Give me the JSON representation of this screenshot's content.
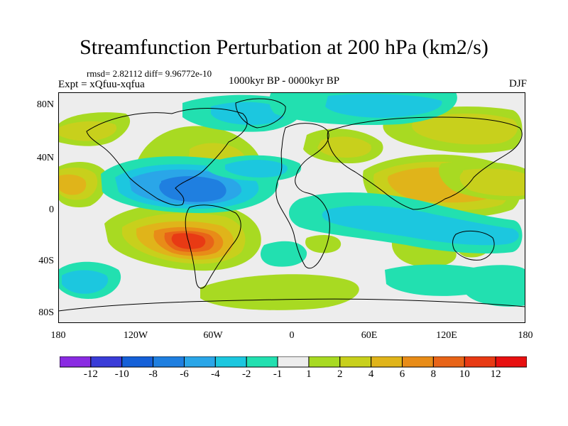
{
  "title": "Streamfunction Perturbation at 200 hPa (km2/s)",
  "stats": "rmsd= 2.82112 diff= 9.96772e-10",
  "experiment": "Expt = xQfuu-xqfua",
  "period": "1000kyr BP - 0000kyr BP",
  "season": "DJF",
  "axes": {
    "y_ticks": [
      "80N",
      "40N",
      "0",
      "40S",
      "80S"
    ],
    "x_ticks": [
      "180",
      "120W",
      "60W",
      "0",
      "60E",
      "120E",
      "180"
    ]
  },
  "colorbar": {
    "labels": [
      "-12",
      "-10",
      "-8",
      "-6",
      "-4",
      "-2",
      "-1",
      "1",
      "2",
      "4",
      "6",
      "8",
      "10",
      "12"
    ],
    "colors": [
      "#8A2BE2",
      "#3A3CD8",
      "#1560D8",
      "#1F7FE0",
      "#2AA6E8",
      "#1CC7DF",
      "#22E0B0",
      "#EDEDED",
      "#A8DA22",
      "#C8D01C",
      "#E0B41A",
      "#E88C18",
      "#E86418",
      "#E83A14",
      "#E81010"
    ]
  },
  "palette": {
    "p1": "#A8DA22",
    "p2": "#C8D01C",
    "p4": "#E0B41A",
    "p6": "#E88C18",
    "p8": "#E86418",
    "p10": "#E83A14",
    "n1": "#22E0B0",
    "n2": "#1CC7DF",
    "n4": "#2AA6E8",
    "n6": "#1F7FE0",
    "neutral": "#EDEDED"
  }
}
